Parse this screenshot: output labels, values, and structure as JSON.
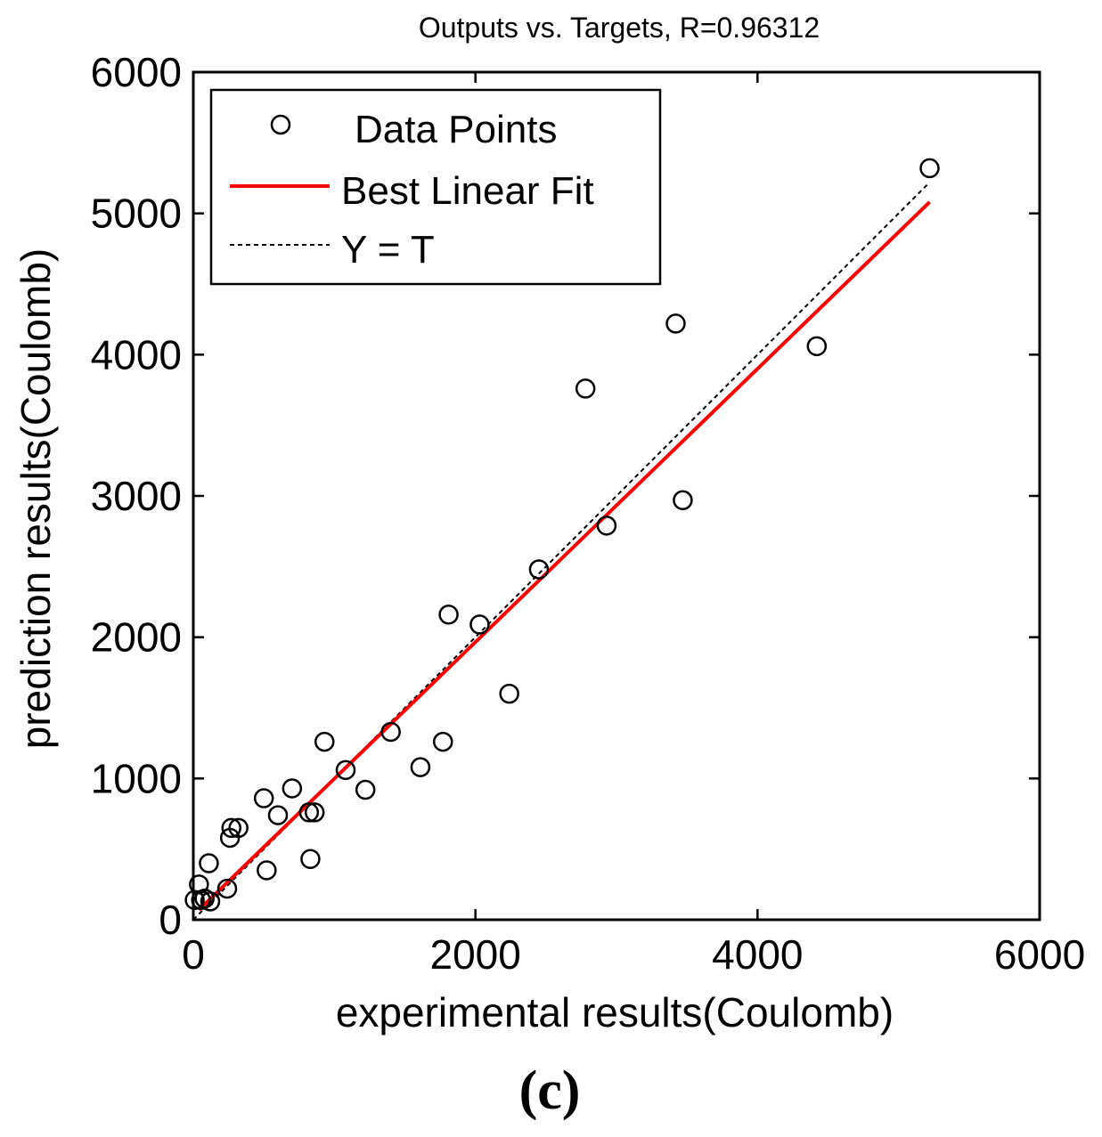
{
  "panel_label": "(c)",
  "chart_data": {
    "type": "scatter",
    "title": "Outputs vs. Targets, R=0.96312",
    "xlabel": "experimental results(Coulomb)",
    "ylabel": "prediction results(Coulomb)",
    "xlim": [
      0,
      6000
    ],
    "ylim": [
      0,
      6000
    ],
    "xticks": [
      0,
      2000,
      4000,
      6000
    ],
    "yticks": [
      0,
      1000,
      2000,
      3000,
      4000,
      5000,
      6000
    ],
    "x_tick_labels": [
      "0",
      "2000",
      "4000",
      "6000"
    ],
    "y_tick_labels": [
      "0",
      "1000",
      "2000",
      "3000",
      "4000",
      "5000",
      "6000"
    ],
    "grid": false,
    "legend_position": "top-left",
    "legend": [
      {
        "label": "Data Points",
        "style": "circle"
      },
      {
        "label": "Best Linear Fit",
        "style": "solid-red-line"
      },
      {
        "label": "Y = T",
        "style": "dotted-black-line"
      }
    ],
    "colors": {
      "fit_line": "#ff0000",
      "identity_line": "#000000",
      "points": "#000000"
    },
    "series": [
      {
        "name": "Data Points",
        "type": "scatter",
        "points": [
          [
            10,
            140
          ],
          [
            40,
            250
          ],
          [
            55,
            140
          ],
          [
            80,
            150
          ],
          [
            110,
            400
          ],
          [
            120,
            130
          ],
          [
            240,
            220
          ],
          [
            260,
            580
          ],
          [
            270,
            650
          ],
          [
            320,
            650
          ],
          [
            500,
            860
          ],
          [
            520,
            350
          ],
          [
            600,
            740
          ],
          [
            700,
            930
          ],
          [
            820,
            760
          ],
          [
            830,
            430
          ],
          [
            860,
            760
          ],
          [
            930,
            1260
          ],
          [
            1080,
            1060
          ],
          [
            1220,
            920
          ],
          [
            1400,
            1330
          ],
          [
            1610,
            1080
          ],
          [
            1770,
            1260
          ],
          [
            1810,
            2160
          ],
          [
            2030,
            2090
          ],
          [
            2240,
            1600
          ],
          [
            2450,
            2480
          ],
          [
            2780,
            3760
          ],
          [
            2930,
            2790
          ],
          [
            3420,
            4220
          ],
          [
            3470,
            2970
          ],
          [
            4420,
            4060
          ],
          [
            5220,
            5320
          ]
        ]
      },
      {
        "name": "Best Linear Fit",
        "type": "line",
        "points": [
          [
            40,
            70
          ],
          [
            5220,
            5080
          ]
        ]
      },
      {
        "name": "Y = T",
        "type": "line",
        "points": [
          [
            0,
            0
          ],
          [
            5220,
            5220
          ]
        ]
      }
    ]
  }
}
